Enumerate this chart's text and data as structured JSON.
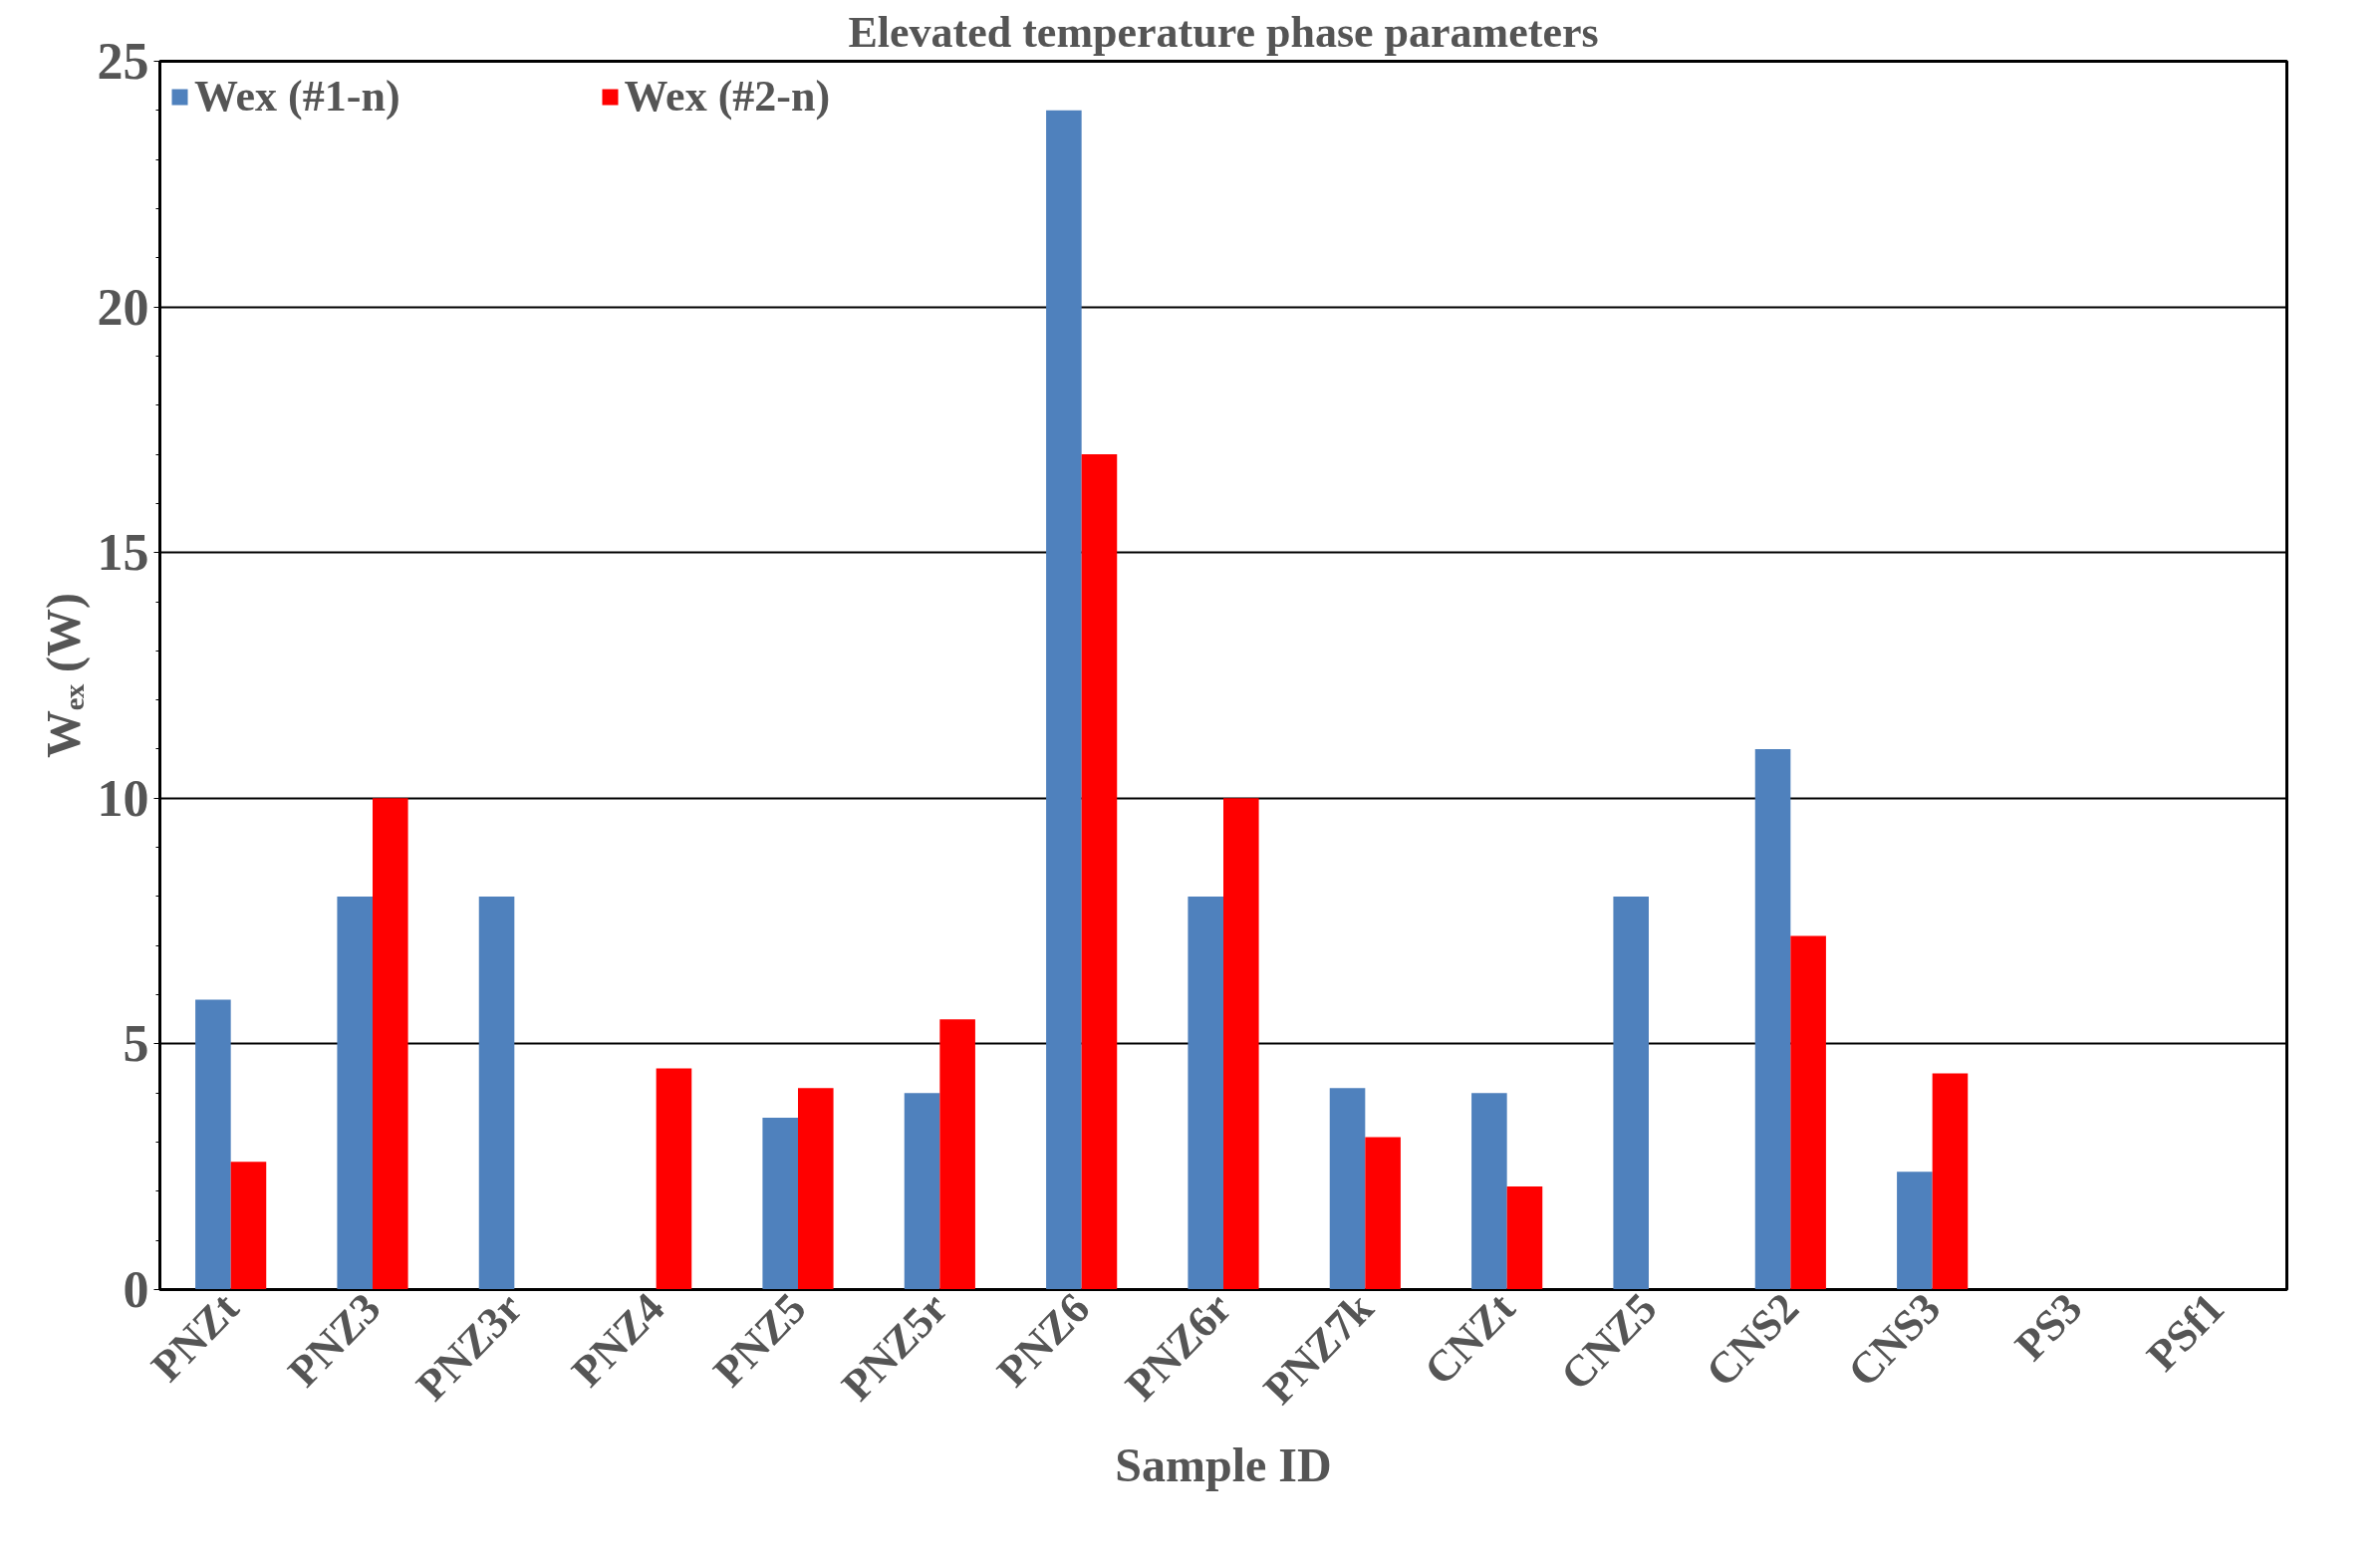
{
  "chart_data": {
    "type": "bar",
    "title": "Elevated temperature phase parameters",
    "xlabel": "Sample ID",
    "ylabel": "Wₑₓ (W)",
    "categories": [
      "PNZt",
      "PNZ3",
      "PNZ3r",
      "PNZ4",
      "PNZ5",
      "PNZ5r",
      "PNZ6",
      "PNZ6r",
      "PNZ7k",
      "CNZt",
      "CNZ5",
      "CNS2",
      "CNS3",
      "PS3",
      "PSf1"
    ],
    "series": [
      {
        "name": "Wex (#1-n)",
        "color": "#4f81bd",
        "values": [
          5.9,
          8,
          8,
          null,
          3.5,
          4.0,
          24,
          8,
          4.1,
          4.0,
          8,
          11,
          2.4,
          null,
          null
        ]
      },
      {
        "name": "Wex (#2-n)",
        "color": "#ff0000",
        "values": [
          2.6,
          10,
          null,
          4.5,
          4.1,
          5.5,
          17,
          10,
          3.1,
          2.1,
          null,
          7.2,
          4.4,
          null,
          null
        ]
      }
    ],
    "ylim": [
      0,
      25
    ],
    "yticks": [
      0,
      5,
      10,
      15,
      20,
      25
    ],
    "grid": "y",
    "legend": "top left"
  }
}
